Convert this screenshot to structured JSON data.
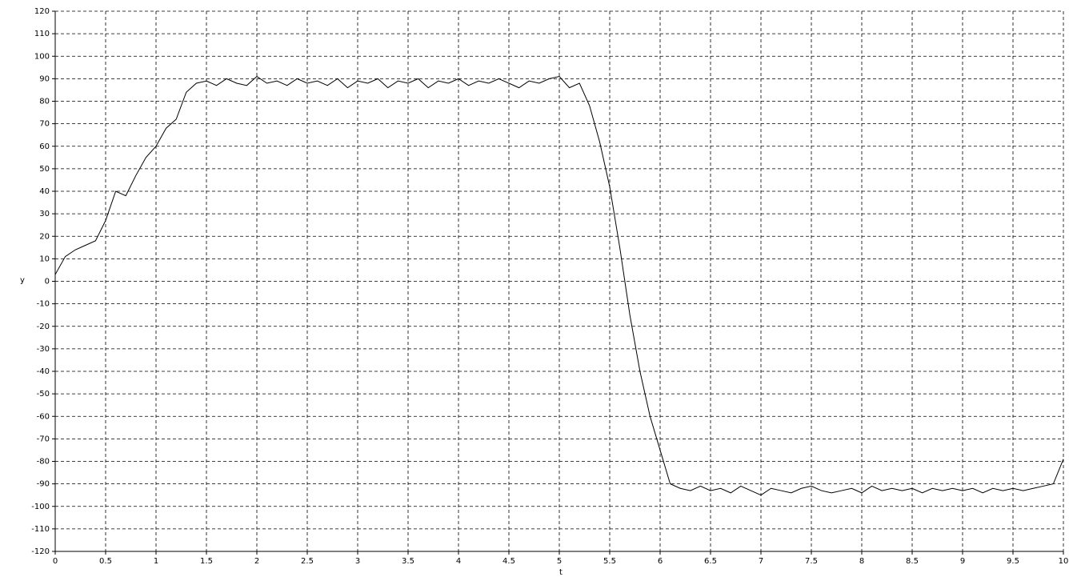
{
  "chart_data": {
    "type": "line",
    "xlabel": "t",
    "ylabel": "y",
    "color": "#000000",
    "grid": true,
    "x": [
      0,
      0.1,
      0.2,
      0.3,
      0.4,
      0.5,
      0.6,
      0.7,
      0.8,
      0.9,
      1,
      1.1,
      1.2,
      1.3,
      1.4,
      1.5,
      1.6,
      1.7,
      1.8,
      1.9,
      2,
      2.1,
      2.2,
      2.3,
      2.4,
      2.5,
      2.6,
      2.7,
      2.8,
      2.9,
      3,
      3.1,
      3.2,
      3.3,
      3.4,
      3.5,
      3.6,
      3.7,
      3.8,
      3.9,
      4,
      4.1,
      4.2,
      4.3,
      4.4,
      4.5,
      4.6,
      4.7,
      4.8,
      4.9,
      5,
      5.1,
      5.2,
      5.3,
      5.4,
      5.5,
      5.6,
      5.7,
      5.8,
      5.9,
      6,
      6.1,
      6.2,
      6.3,
      6.4,
      6.5,
      6.6,
      6.7,
      6.8,
      6.9,
      7,
      7.1,
      7.2,
      7.3,
      7.4,
      7.5,
      7.6,
      7.7,
      7.8,
      7.9,
      8,
      8.1,
      8.2,
      8.3,
      8.4,
      8.5,
      8.6,
      8.7,
      8.8,
      8.9,
      9,
      9.1,
      9.2,
      9.3,
      9.4,
      9.5,
      9.6,
      9.7,
      9.8,
      9.9,
      10
    ],
    "values": [
      3,
      11,
      14,
      16,
      18,
      27,
      40,
      38,
      47,
      55,
      60,
      68,
      72,
      84,
      88,
      89,
      87,
      90,
      88,
      87,
      91,
      88,
      89,
      87,
      90,
      88,
      89,
      87,
      90,
      86,
      89,
      88,
      90,
      86,
      89,
      88,
      90,
      86,
      89,
      88,
      90,
      87,
      89,
      88,
      90,
      88,
      86,
      89,
      88,
      90,
      91,
      86,
      88,
      78,
      62,
      42,
      15,
      -15,
      -40,
      -60,
      -75,
      -90,
      -92,
      -93,
      -91,
      -93,
      -92,
      -94,
      -91,
      -93,
      -95,
      -92,
      -93,
      -94,
      -92,
      -91,
      -93,
      -94,
      -93,
      -92,
      -94,
      -91,
      -93,
      -92,
      -93,
      -92,
      -94,
      -92,
      -93,
      -92,
      -93,
      -92,
      -94,
      -92,
      -93,
      -92,
      -93,
      -92,
      -91,
      -90,
      -79
    ],
    "xlim": [
      0,
      10
    ],
    "ylim": [
      -120,
      120
    ],
    "xticks": [
      0,
      0.5,
      1,
      1.5,
      2,
      2.5,
      3,
      3.5,
      4,
      4.5,
      5,
      5.5,
      6,
      6.5,
      7,
      7.5,
      8,
      8.5,
      9,
      9.5,
      10
    ],
    "yticks": [
      -120,
      -110,
      -100,
      -90,
      -80,
      -70,
      -60,
      -50,
      -40,
      -30,
      -20,
      -10,
      0,
      10,
      20,
      30,
      40,
      50,
      60,
      70,
      80,
      90,
      100,
      110,
      120
    ]
  }
}
